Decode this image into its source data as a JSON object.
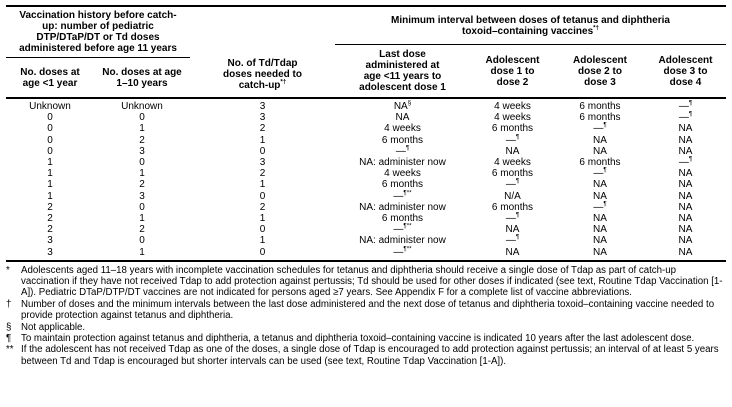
{
  "table": {
    "left_group_header": "Vaccination history before catch-up: number of pediatric DTP/DTaP/DT or Td doses administered before age 11 years",
    "right_group_header": "Minimum interval between doses of tetanus and diphtheria toxoid–containing vaccines*†",
    "columns": [
      "No. doses at age <1 year",
      "No. doses at age 1–10 years",
      "No. of Td/Tdap doses needed to catch-up*†",
      "Last dose administered at age <11 years to adolescent dose 1",
      "Adolescent dose 1 to dose 2",
      "Adolescent dose 2 to dose 3",
      "Adolescent dose 3 to dose 4"
    ],
    "rows": [
      [
        "Unknown",
        "Unknown",
        "3",
        "NA§",
        "4 weeks",
        "6 months",
        "—¶"
      ],
      [
        "0",
        "0",
        "3",
        "NA",
        "4 weeks",
        "6 months",
        "—¶"
      ],
      [
        "0",
        "1",
        "2",
        "4 weeks",
        "6 months",
        "—¶",
        "NA"
      ],
      [
        "0",
        "2",
        "1",
        "6 months",
        "—¶",
        "NA",
        "NA"
      ],
      [
        "0",
        "3",
        "0",
        "—¶",
        "NA",
        "NA",
        "NA"
      ],
      [
        "1",
        "0",
        "3",
        "NA: administer now",
        "4 weeks",
        "6 months",
        "—¶"
      ],
      [
        "1",
        "1",
        "2",
        "4 weeks",
        "6 months",
        "—¶",
        "NA"
      ],
      [
        "1",
        "2",
        "1",
        "6 months",
        "—¶",
        "NA",
        "NA"
      ],
      [
        "1",
        "3",
        "0",
        "—¶**",
        "N/A",
        "NA",
        "NA"
      ],
      [
        "2",
        "0",
        "2",
        "NA: administer now",
        "6 months",
        "—¶",
        "NA"
      ],
      [
        "2",
        "1",
        "1",
        "6 months",
        "—¶",
        "NA",
        "NA"
      ],
      [
        "2",
        "2",
        "0",
        "—¶**",
        "NA",
        "NA",
        "NA"
      ],
      [
        "3",
        "0",
        "1",
        "NA: administer now",
        "—¶",
        "NA",
        "NA"
      ],
      [
        "3",
        "1",
        "0",
        "—¶**",
        "NA",
        "NA",
        "NA"
      ]
    ]
  },
  "footnotes": [
    {
      "marker": "*",
      "text": "Adolescents aged 11–18 years with incomplete vaccination schedules for tetanus and diphtheria should receive a single dose of Tdap as part of catch-up vaccination if they have not received Tdap to add protection against pertussis; Td should be used for other doses if indicated (see text, Routine Tdap Vaccination [1-A]). Pediatric DTaP/DTP/DT vaccines are not indicated for persons aged ≥7 years. See Appendix F for a complete list of vaccine abbreviations."
    },
    {
      "marker": "†",
      "text": "Number of doses and the minimum intervals between the last dose administered and the next dose of tetanus and diphtheria toxoid–containing vaccine needed to provide protection against tetanus and diphtheria."
    },
    {
      "marker": "§",
      "text": "Not applicable."
    },
    {
      "marker": "¶",
      "text": "To maintain protection against tetanus and diphtheria, a tetanus and diphtheria toxoid–containing vaccine is indicated 10 years after the last adolescent dose."
    },
    {
      "marker": "**",
      "text": "If the adolescent has not received Tdap as one of the doses, a single dose of Tdap is encouraged to add protection against pertussis; an interval of at least 5 years between Td and Tdap is encouraged but shorter intervals can be used (see text, Routine Tdap Vaccination [1-A])."
    }
  ],
  "colors": {
    "text": "#000000",
    "rule": "#000000",
    "background": "#ffffff"
  }
}
